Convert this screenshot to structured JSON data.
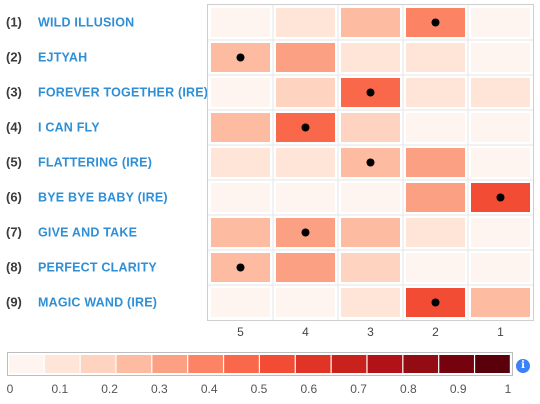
{
  "chart_data": {
    "type": "heatmap",
    "row_numbers": [
      "(1)",
      "(2)",
      "(3)",
      "(4)",
      "(5)",
      "(6)",
      "(7)",
      "(8)",
      "(9)"
    ],
    "rows": [
      "WILD ILLUSION",
      "EJTYAH",
      "FOREVER TOGETHER (IRE)",
      "I CAN FLY",
      "FLATTERING (IRE)",
      "BYE BYE BABY (IRE)",
      "GIVE AND TAKE",
      "PERFECT CLARITY",
      "MAGIC WAND (IRE)"
    ],
    "columns": [
      "5",
      "4",
      "3",
      "2",
      "1"
    ],
    "values": [
      [
        0.03,
        0.15,
        0.3,
        0.45,
        0.07
      ],
      [
        0.3,
        0.35,
        0.15,
        0.1,
        0.05
      ],
      [
        0.07,
        0.2,
        0.5,
        0.15,
        0.12
      ],
      [
        0.25,
        0.5,
        0.2,
        0.05,
        0.03
      ],
      [
        0.15,
        0.15,
        0.25,
        0.35,
        0.07
      ],
      [
        0.02,
        0.03,
        0.05,
        0.35,
        0.55
      ],
      [
        0.25,
        0.35,
        0.25,
        0.15,
        0.03
      ],
      [
        0.25,
        0.35,
        0.2,
        0.05,
        0.03
      ],
      [
        0.03,
        0.05,
        0.08,
        0.6,
        0.3
      ]
    ],
    "markers": [
      [
        0,
        3
      ],
      [
        1,
        0
      ],
      [
        2,
        2
      ],
      [
        3,
        1
      ],
      [
        4,
        2
      ],
      [
        5,
        4
      ],
      [
        6,
        1
      ],
      [
        7,
        0
      ],
      [
        8,
        3
      ]
    ],
    "color_scale": {
      "min": 0,
      "max": 1,
      "ticks": [
        "0",
        "0.1",
        "0.2",
        "0.3",
        "0.4",
        "0.5",
        "0.6",
        "0.7",
        "0.8",
        "0.9",
        "1"
      ],
      "colors": [
        "#fff5f0",
        "#ffe4d8",
        "#fed3c0",
        "#fdbba1",
        "#fca083",
        "#fc8465",
        "#f9684a",
        "#f24c35",
        "#e03426",
        "#c9211c",
        "#b01217",
        "#930b13",
        "#74030e",
        "#5a000a"
      ]
    },
    "marker_color": "#000000",
    "row_label_color": "#2f8fd6"
  },
  "ui": {
    "info_icon_glyph": "i"
  }
}
